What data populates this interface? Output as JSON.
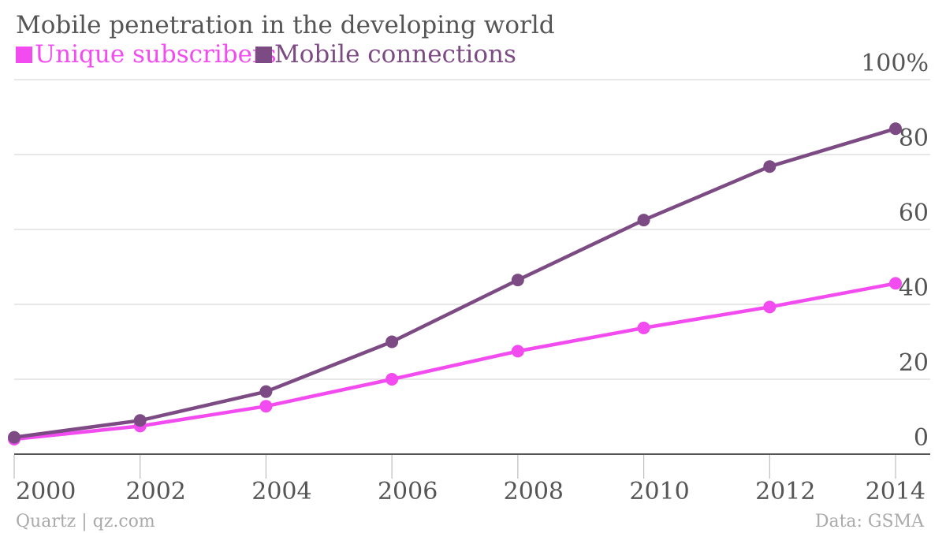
{
  "chart_data": {
    "type": "line",
    "title": "Mobile penetration in the developing world",
    "x": [
      "2000",
      "2002",
      "2004",
      "2006",
      "2008",
      "2010",
      "2012",
      "2014"
    ],
    "series": [
      {
        "name": "Unique subscribers",
        "color": "#f24cf0",
        "values": [
          4,
          7.5,
          12.8,
          20,
          27.5,
          33.7,
          39.3,
          45.6
        ]
      },
      {
        "name": "Mobile connections",
        "color": "#7d4b84",
        "values": [
          4.5,
          9,
          16.7,
          30,
          46.5,
          62.5,
          76.8,
          86.9
        ]
      }
    ],
    "ylim": [
      0,
      100
    ],
    "yticks": [
      "0",
      "20",
      "40",
      "60",
      "80",
      "100%"
    ],
    "ytick_values": [
      0,
      20,
      40,
      60,
      80,
      100
    ],
    "grid": true,
    "legend_placement": "top-left",
    "source_left": "Quartz | qz.com",
    "source_right": "Data: GSMA"
  }
}
